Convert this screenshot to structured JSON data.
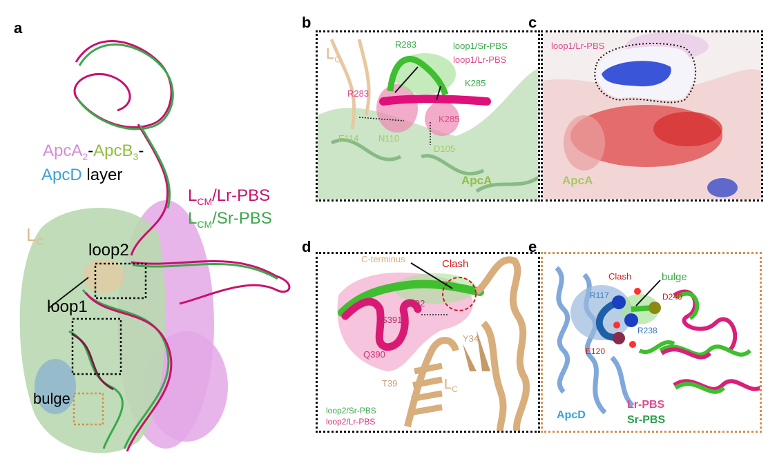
{
  "panel_labels": {
    "a": "a",
    "b": "b",
    "c": "c",
    "d": "d",
    "e": "e"
  },
  "panel_a": {
    "layer_line1_part1": "ApcA",
    "layer_line1_sub1": "2",
    "layer_line1_dash": "-",
    "layer_line1_part2": "ApcB",
    "layer_line1_sub2": "3",
    "layer_line1_dash2": "-",
    "layer_line2_part1": "ApcD",
    "layer_line2_part2": " layer",
    "lc": "L",
    "lc_sub": "C",
    "lcm_lr": "L",
    "lcm_lr_sub": "CM",
    "lcm_lr_suffix": "/Lr-PBS",
    "lcm_sr": "L",
    "lcm_sr_sub": "CM",
    "lcm_sr_suffix": "/Sr-PBS",
    "loop2": "loop2",
    "loop1": "loop1",
    "bulge": "bulge"
  },
  "panel_b": {
    "lc": "L",
    "lc_sub": "C",
    "r283_green": "R283",
    "loop1_sr": "loop1/Sr-PBS",
    "loop1_lr": "loop1/Lr-PBS",
    "k285_green": "K285",
    "r283_pink": "R283",
    "k285_pink": "K285",
    "e114": "E114",
    "n110": "N110",
    "d105": "D105",
    "apca": "ApcA"
  },
  "panel_c": {
    "loop1_lr": "loop1/Lr-PBS",
    "apca": "ApcA"
  },
  "panel_d": {
    "c_terminus": "C-terminus",
    "clash": "Clash",
    "s392": "S392",
    "s391": "S391",
    "y34": "Y34",
    "q390": "Q390",
    "t39": "T39",
    "lc": "L",
    "lc_sub": "C",
    "loop2_sr": "loop2/Sr-PBS",
    "loop2_lr": "loop2/Lr-PBS"
  },
  "panel_e": {
    "clash": "Clash",
    "bulge": "bulge",
    "r117": "R117",
    "d240": "D240",
    "r238": "R238",
    "e120": "E120",
    "apcd": "ApcD",
    "lr_pbs": "Lr-PBS",
    "sr_pbs": "Sr-PBS"
  },
  "colors": {
    "lr_magenta": "#c8106e",
    "sr_green": "#3aa84a",
    "apca_green": "#8fbf3f",
    "apcb_violet": "#d58ad8",
    "apcd_blue": "#3aa0dc",
    "lc_tan": "#e0b98a",
    "clash_red": "#d21b1b"
  }
}
